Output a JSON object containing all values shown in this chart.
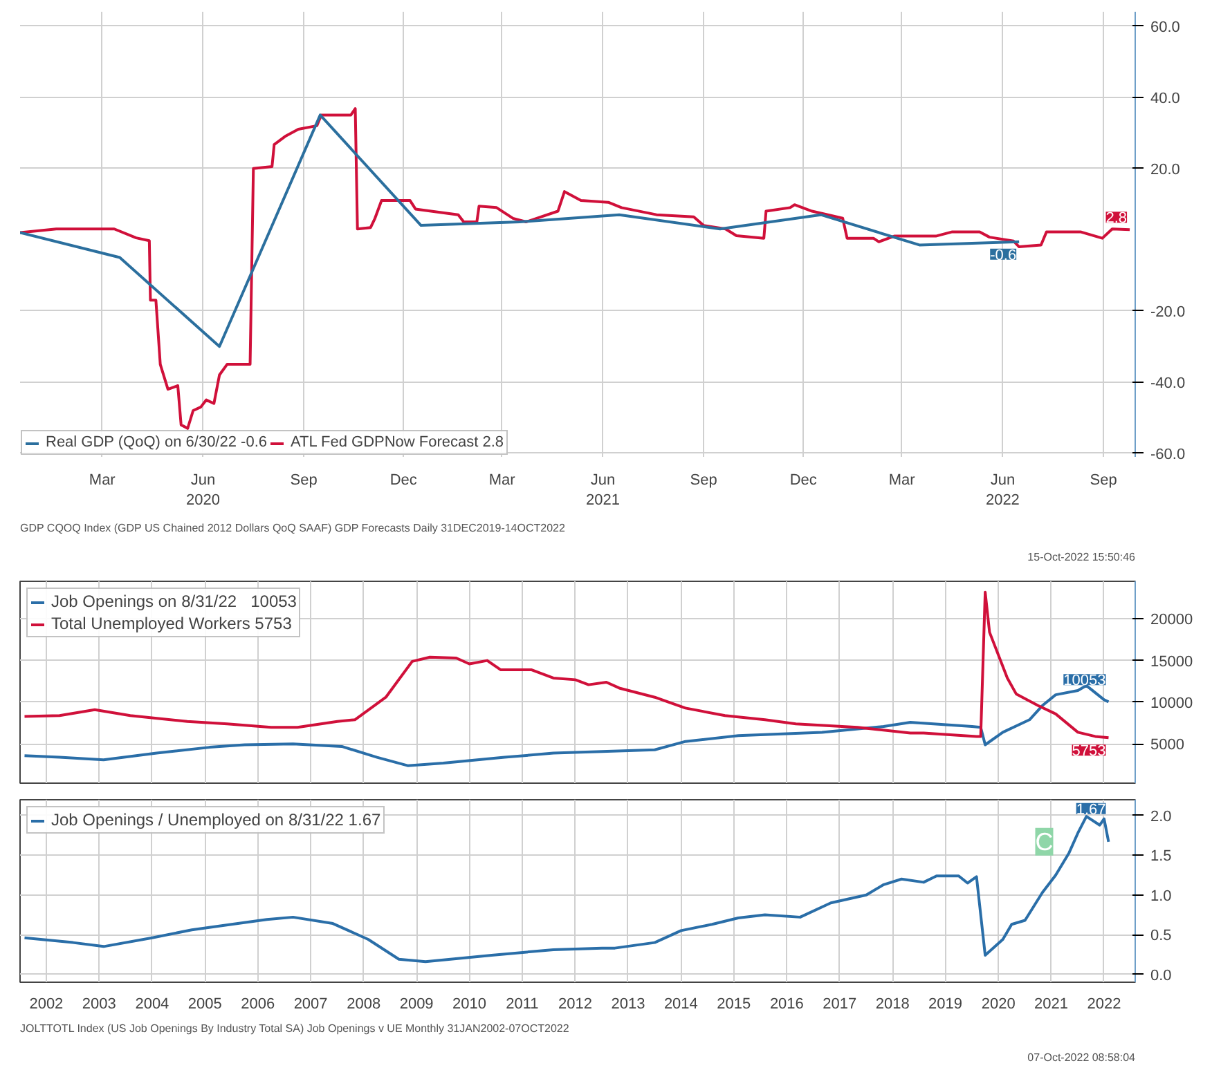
{
  "chart_data": [
    {
      "type": "line",
      "xlim": [
        "2019-12-31",
        "2022-10-14"
      ],
      "ylim": [
        -61,
        64
      ],
      "xticks": [
        {
          "value": "2020-03-15",
          "label": "Mar"
        },
        {
          "value": "2020-06-15",
          "label": "Jun\n2020"
        },
        {
          "value": "2020-09-15",
          "label": "Sep"
        },
        {
          "value": "2020-12-15",
          "label": "Dec"
        },
        {
          "value": "2021-03-15",
          "label": "Mar"
        },
        {
          "value": "2021-06-15",
          "label": "Jun\n2021"
        },
        {
          "value": "2021-09-15",
          "label": "Sep"
        },
        {
          "value": "2021-12-15",
          "label": "Dec"
        },
        {
          "value": "2022-03-15",
          "label": "Mar"
        },
        {
          "value": "2022-06-15",
          "label": "Jun\n2022"
        },
        {
          "value": "2022-09-15",
          "label": "Sep"
        }
      ],
      "yticks": [
        {
          "value": -60,
          "label": "-60.0"
        },
        {
          "value": -40,
          "label": "-40.0"
        },
        {
          "value": -20,
          "label": "-20.0"
        },
        {
          "value": 20,
          "label": "20.0"
        },
        {
          "value": 40,
          "label": "40.0"
        },
        {
          "value": 60,
          "label": "60.0"
        }
      ],
      "grid": true,
      "legend": "bottom left",
      "series": [
        {
          "name": "ATL Fed GDPNow Forecast 2.8",
          "color": "#d0103a",
          "x": [
            "2019-12-31",
            "2020-02-02",
            "2020-03-26",
            "2020-04-15",
            "2020-04-27",
            "2020-04-28",
            "2020-05-03",
            "2020-05-07",
            "2020-05-14",
            "2020-05-23",
            "2020-05-26",
            "2020-06-01",
            "2020-06-06",
            "2020-06-13",
            "2020-06-18",
            "2020-06-25",
            "2020-06-30",
            "2020-07-07",
            "2020-07-28",
            "2020-07-31",
            "2020-08-17",
            "2020-08-19",
            "2020-08-29",
            "2020-09-10",
            "2020-09-27",
            "2020-10-01",
            "2020-10-28",
            "2020-11-01",
            "2020-11-03",
            "2020-11-15",
            "2020-11-19",
            "2020-11-25",
            "2020-12-21",
            "2020-12-26",
            "2021-02-03",
            "2021-02-08",
            "2021-02-20",
            "2021-02-22",
            "2021-03-10",
            "2021-03-25",
            "2021-04-06",
            "2021-05-05",
            "2021-05-11",
            "2021-05-26",
            "2021-06-20",
            "2021-07-02",
            "2021-08-03",
            "2021-09-06",
            "2021-09-15",
            "2021-10-05",
            "2021-10-15",
            "2021-11-09",
            "2021-11-11",
            "2021-12-03",
            "2021-12-07",
            "2021-12-23",
            "2022-01-20",
            "2022-01-24",
            "2022-02-17",
            "2022-02-22",
            "2022-03-08",
            "2022-04-15",
            "2022-04-30",
            "2022-05-25",
            "2022-06-03",
            "2022-06-25",
            "2022-06-30",
            "2022-07-20",
            "2022-07-25",
            "2022-08-25",
            "2022-09-14",
            "2022-09-23",
            "2022-10-09"
          ],
          "values": [
            2,
            3,
            3,
            0.5,
            -0.3,
            -17,
            -17,
            -35,
            -42,
            -41,
            -52,
            -53,
            -48,
            -47,
            -45,
            -46,
            -38,
            -35,
            -35,
            20,
            20.5,
            26.7,
            29,
            31,
            32,
            35,
            35,
            36.8,
            3,
            3.4,
            6,
            11,
            11,
            8.6,
            7,
            5,
            5,
            9.4,
            9,
            6,
            5,
            8,
            13.5,
            11,
            10.5,
            9,
            7,
            6.4,
            4,
            3,
            1.1,
            0.4,
            8,
            9,
            9.8,
            8,
            6,
            0.4,
            0.4,
            -0.6,
            1,
            1,
            2.2,
            2.2,
            0.7,
            -0.4,
            -2,
            -1.5,
            2.2,
            2.2,
            0.4,
            3,
            2.8
          ]
        },
        {
          "name": "Real GDP (QoQ) on 6/30/22 -0.6",
          "color": "#2b6f9e",
          "x": [
            "2019-12-31",
            "2020-03-31",
            "2020-06-30",
            "2020-09-30",
            "2020-12-31",
            "2021-03-31",
            "2021-06-30",
            "2021-09-30",
            "2021-12-31",
            "2022-03-31",
            "2022-06-30"
          ],
          "values": [
            2,
            -5,
            -30,
            35,
            4,
            5,
            7,
            3,
            7,
            -1.5,
            -0.6
          ]
        }
      ],
      "annotations": [
        {
          "text": "2.8",
          "x": "2022-10-09",
          "y": 2.8
        },
        {
          "text": "-0.6",
          "x": "2022-06-30",
          "y": -0.6
        },
        "GDP CQOQ Index (GDP US Chained 2012 Dollars QoQ SAAF) GDP Forecasts  Daily 31DEC2019-14OCT2022",
        "15-Oct-2022 15:50:46"
      ]
    },
    {
      "type": "line",
      "xlim": [
        "2002-01-01",
        "2023-02-01"
      ],
      "ylim": [
        300,
        24500
      ],
      "xticks": [
        "2002-07-01",
        "2003-07-01",
        "2004-07-01",
        "2005-07-01",
        "2006-07-01",
        "2007-07-01",
        "2008-07-01",
        "2009-07-01",
        "2010-07-01",
        "2011-07-01",
        "2012-07-01",
        "2013-07-01",
        "2014-07-01",
        "2015-07-01",
        "2016-07-01",
        "2017-07-01",
        "2018-07-01",
        "2019-07-01",
        "2020-07-01",
        "2021-07-01",
        "2022-07-01"
      ],
      "yticks": [
        5000,
        10000,
        15000,
        20000
      ],
      "tick_labels": "y",
      "grid": true,
      "legend": "top left",
      "series": [
        {
          "name": "Job Openings on 8/31/22   10053",
          "color": "#2a6ea8",
          "x": [
            "2002-02",
            "2002-10",
            "2003-08",
            "2004-08",
            "2005-08",
            "2006-04",
            "2007-03",
            "2008-02",
            "2008-10",
            "2009-05",
            "2010-01",
            "2011-03",
            "2012-02",
            "2013-01",
            "2014-01",
            "2014-08",
            "2015-08",
            "2017-03",
            "2018-05",
            "2018-11",
            "2020-01",
            "2020-03",
            "2020-04",
            "2020-08",
            "2021-02",
            "2021-05",
            "2021-08",
            "2022-01",
            "2022-03",
            "2022-07",
            "2022-08"
          ],
          "values": [
            3600,
            3400,
            3100,
            3900,
            4600,
            4900,
            5000,
            4700,
            3400,
            2400,
            2700,
            3400,
            3900,
            4100,
            4300,
            5300,
            6000,
            6400,
            7100,
            7600,
            7100,
            7000,
            4900,
            6400,
            7900,
            9600,
            10900,
            11400,
            12000,
            10300,
            10053
          ]
        },
        {
          "name": "Total Unemployed Workers 5753",
          "color": "#d0103a",
          "x": [
            "2002-02",
            "2002-10",
            "2003-06",
            "2004-02",
            "2005-03",
            "2005-12",
            "2006-10",
            "2007-04",
            "2008-01",
            "2008-05",
            "2008-12",
            "2009-06",
            "2009-10",
            "2010-04",
            "2010-07",
            "2010-11",
            "2011-02",
            "2011-09",
            "2012-02",
            "2012-07",
            "2012-10",
            "2013-02",
            "2013-05",
            "2014-01",
            "2014-08",
            "2015-05",
            "2016-02",
            "2016-09",
            "2017-11",
            "2018-11",
            "2019-02",
            "2020-02",
            "2020-03",
            "2020-04",
            "2020-05",
            "2020-09",
            "2020-11",
            "2021-04",
            "2021-08",
            "2022-01",
            "2022-05",
            "2022-08"
          ],
          "values": [
            8300,
            8400,
            9100,
            8400,
            7700,
            7400,
            7000,
            7000,
            7700,
            7900,
            10600,
            14900,
            15400,
            15300,
            14600,
            15000,
            13900,
            13900,
            12900,
            12700,
            12100,
            12400,
            11700,
            10600,
            9300,
            8400,
            7900,
            7400,
            7000,
            6300,
            6300,
            5900,
            5900,
            23200,
            18400,
            12900,
            11000,
            9600,
            8600,
            6400,
            5900,
            5753
          ]
        }
      ],
      "annotations": [
        {
          "text": "10053",
          "x": "2022-08",
          "y": 10053
        },
        {
          "text": "5753",
          "x": "2022-08",
          "y": 5753
        }
      ]
    },
    {
      "type": "line",
      "xlim": [
        "2002-01-01",
        "2023-02-01"
      ],
      "ylim": [
        -0.1,
        2.2
      ],
      "xticks": [
        {
          "value": "2002-07-01",
          "label": "2002"
        },
        {
          "value": "2003-07-01",
          "label": "2003"
        },
        {
          "value": "2004-07-01",
          "label": "2004"
        },
        {
          "value": "2005-07-01",
          "label": "2005"
        },
        {
          "value": "2006-07-01",
          "label": "2006"
        },
        {
          "value": "2007-07-01",
          "label": "2007"
        },
        {
          "value": "2008-07-01",
          "label": "2008"
        },
        {
          "value": "2009-07-01",
          "label": "2009"
        },
        {
          "value": "2010-07-01",
          "label": "2010"
        },
        {
          "value": "2011-07-01",
          "label": "2011"
        },
        {
          "value": "2012-07-01",
          "label": "2012"
        },
        {
          "value": "2013-07-01",
          "label": "2013"
        },
        {
          "value": "2014-07-01",
          "label": "2014"
        },
        {
          "value": "2015-07-01",
          "label": "2015"
        },
        {
          "value": "2016-07-01",
          "label": "2016"
        },
        {
          "value": "2017-07-01",
          "label": "2017"
        },
        {
          "value": "2018-07-01",
          "label": "2018"
        },
        {
          "value": "2019-07-01",
          "label": "2019"
        },
        {
          "value": "2020-07-01",
          "label": "2020"
        },
        {
          "value": "2021-07-01",
          "label": "2021"
        },
        {
          "value": "2022-07-01",
          "label": "2022"
        }
      ],
      "yticks": [
        {
          "value": 0,
          "label": "0.0"
        },
        {
          "value": 0.5,
          "label": "0.5"
        },
        {
          "value": 1,
          "label": "1.0"
        },
        {
          "value": 1.5,
          "label": "1.5"
        },
        {
          "value": 2,
          "label": "2.0"
        }
      ],
      "grid": true,
      "legend": "top left",
      "series": [
        {
          "name": "Job Openings / Unemployed on 8/31/22 1.67",
          "color": "#2a6ea8",
          "x": [
            "2002-02",
            "2003-01",
            "2003-08",
            "2004-07",
            "2005-04",
            "2006-01",
            "2006-09",
            "2007-03",
            "2007-12",
            "2008-08",
            "2009-03",
            "2009-09",
            "2010-12",
            "2012-02",
            "2013-01",
            "2013-04",
            "2014-01",
            "2014-07",
            "2015-02",
            "2015-08",
            "2016-02",
            "2016-10",
            "2017-05",
            "2018-01",
            "2018-05",
            "2018-09",
            "2019-02",
            "2019-05",
            "2019-10",
            "2019-12",
            "2020-02",
            "2020-04",
            "2020-08",
            "2020-10",
            "2021-01",
            "2021-05",
            "2021-08",
            "2021-11",
            "2022-01",
            "2022-03",
            "2022-06",
            "2022-07",
            "2022-08"
          ],
          "values": [
            0.46,
            0.4,
            0.35,
            0.46,
            0.56,
            0.63,
            0.69,
            0.72,
            0.64,
            0.44,
            0.19,
            0.16,
            0.24,
            0.31,
            0.33,
            0.33,
            0.4,
            0.55,
            0.63,
            0.71,
            0.75,
            0.72,
            0.9,
            1.0,
            1.13,
            1.2,
            1.16,
            1.24,
            1.24,
            1.15,
            1.23,
            0.24,
            0.44,
            0.63,
            0.68,
            1.03,
            1.25,
            1.53,
            1.78,
            1.99,
            1.88,
            1.96,
            1.67
          ]
        }
      ],
      "annotations": [
        {
          "text": "1.67",
          "x": "2022-08",
          "y": 1.67
        },
        "C",
        "JOLTTOTL Index (US Job Openings By Industry Total SA) Job Openings v UE  Monthly 31JAN2002-07OCT2022",
        "07-Oct-2022 08:58:04"
      ]
    }
  ]
}
